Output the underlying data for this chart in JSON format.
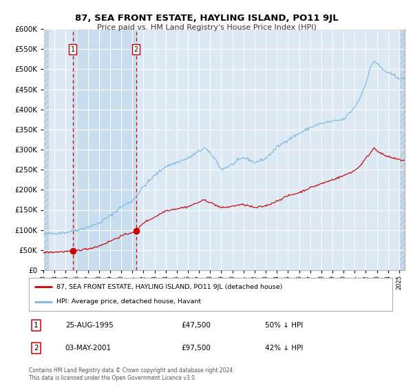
{
  "title": "87, SEA FRONT ESTATE, HAYLING ISLAND, PO11 9JL",
  "subtitle": "Price paid vs. HM Land Registry's House Price Index (HPI)",
  "sale1_price": 47500,
  "sale1_label": "1",
  "sale2_price": 97500,
  "sale2_label": "2",
  "legend_line1": "87, SEA FRONT ESTATE, HAYLING ISLAND, PO11 9JL (detached house)",
  "legend_line2": "HPI: Average price, detached house, Havant",
  "footer": "Contains HM Land Registry data © Crown copyright and database right 2024.\nThis data is licensed under the Open Government Licence v3.0.",
  "sale1_note_date": "25-AUG-1995",
  "sale1_note_price": "£47,500",
  "sale1_note_hpi": "50% ↓ HPI",
  "sale2_note_date": "03-MAY-2001",
  "sale2_note_price": "£97,500",
  "sale2_note_hpi": "42% ↓ HPI",
  "hpi_color": "#7cb8e0",
  "price_color": "#cc0000",
  "marker_color": "#cc0000",
  "bg_color": "#ffffff",
  "plot_bg_color": "#dce9f5",
  "grid_color": "#ffffff",
  "ylim": [
    0,
    600000
  ],
  "yticks": [
    0,
    50000,
    100000,
    150000,
    200000,
    250000,
    300000,
    350000,
    400000,
    450000,
    500000,
    550000,
    600000
  ],
  "xstart": 1993.0,
  "xend": 2025.5,
  "sale1_x": 1995.645,
  "sale2_x": 2001.337
}
